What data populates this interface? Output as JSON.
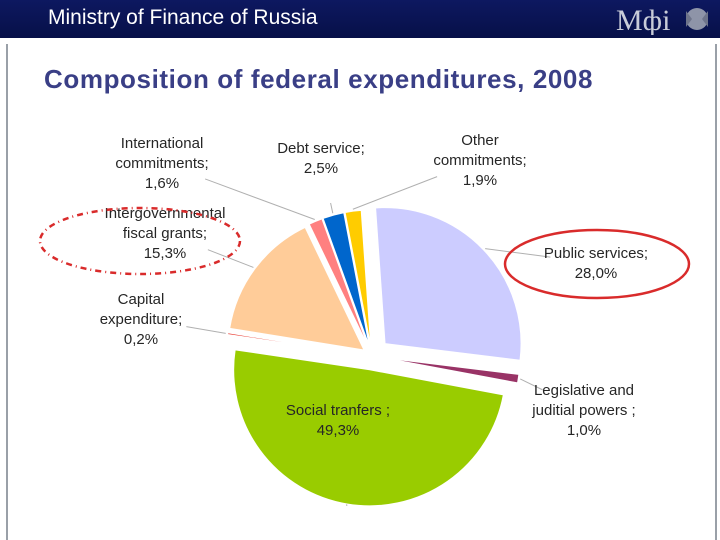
{
  "header": {
    "title": "Ministry of Finance of Russia",
    "logo_text": "Мфi"
  },
  "slide": {
    "title": "Composition of federal expenditures, 2008"
  },
  "colors": {
    "header_bg": "#0d1860",
    "title": "#3a3f86",
    "highlight": "#d92b2b"
  },
  "chart_data": {
    "type": "pie",
    "title": "Composition of federal expenditures, 2008",
    "unit": "%",
    "slices": [
      {
        "name": "Public services",
        "value": 28.0,
        "label_lines": [
          "Public services;",
          "28,0%"
        ],
        "color": "#ccccff"
      },
      {
        "name": "Legislative and juditial powers",
        "value": 1.0,
        "label_lines": [
          "Legislative and",
          "juditial powers ;",
          "1,0%"
        ],
        "color": "#993366"
      },
      {
        "name": "Social tranfers",
        "value": 49.3,
        "label_lines": [
          "Social tranfers ;",
          "49,3%"
        ],
        "color": "#99cc00"
      },
      {
        "name": "Capital expenditure",
        "value": 0.2,
        "label_lines": [
          "Capital",
          "expenditure;",
          "0,2%"
        ],
        "color": "#e83a30"
      },
      {
        "name": "Intergovernmental fiscal grants",
        "value": 15.3,
        "label_lines": [
          "Intergovernmental",
          "fiscal grants;",
          "15,3%"
        ],
        "color": "#ffcc99"
      },
      {
        "name": "International commitments",
        "value": 1.6,
        "label_lines": [
          "International",
          "commitments;",
          "1,6%"
        ],
        "color": "#ff8080"
      },
      {
        "name": "Debt service",
        "value": 2.5,
        "label_lines": [
          "Debt service;",
          "2,5%"
        ],
        "color": "#0066cc"
      },
      {
        "name": "Other commitments",
        "value": 1.9,
        "label_lines": [
          "Other",
          "commitments;",
          "1,9%"
        ],
        "color": "#ffcc00"
      }
    ],
    "highlighted": [
      "Intergovernmental fiscal grants",
      "Public services"
    ]
  }
}
